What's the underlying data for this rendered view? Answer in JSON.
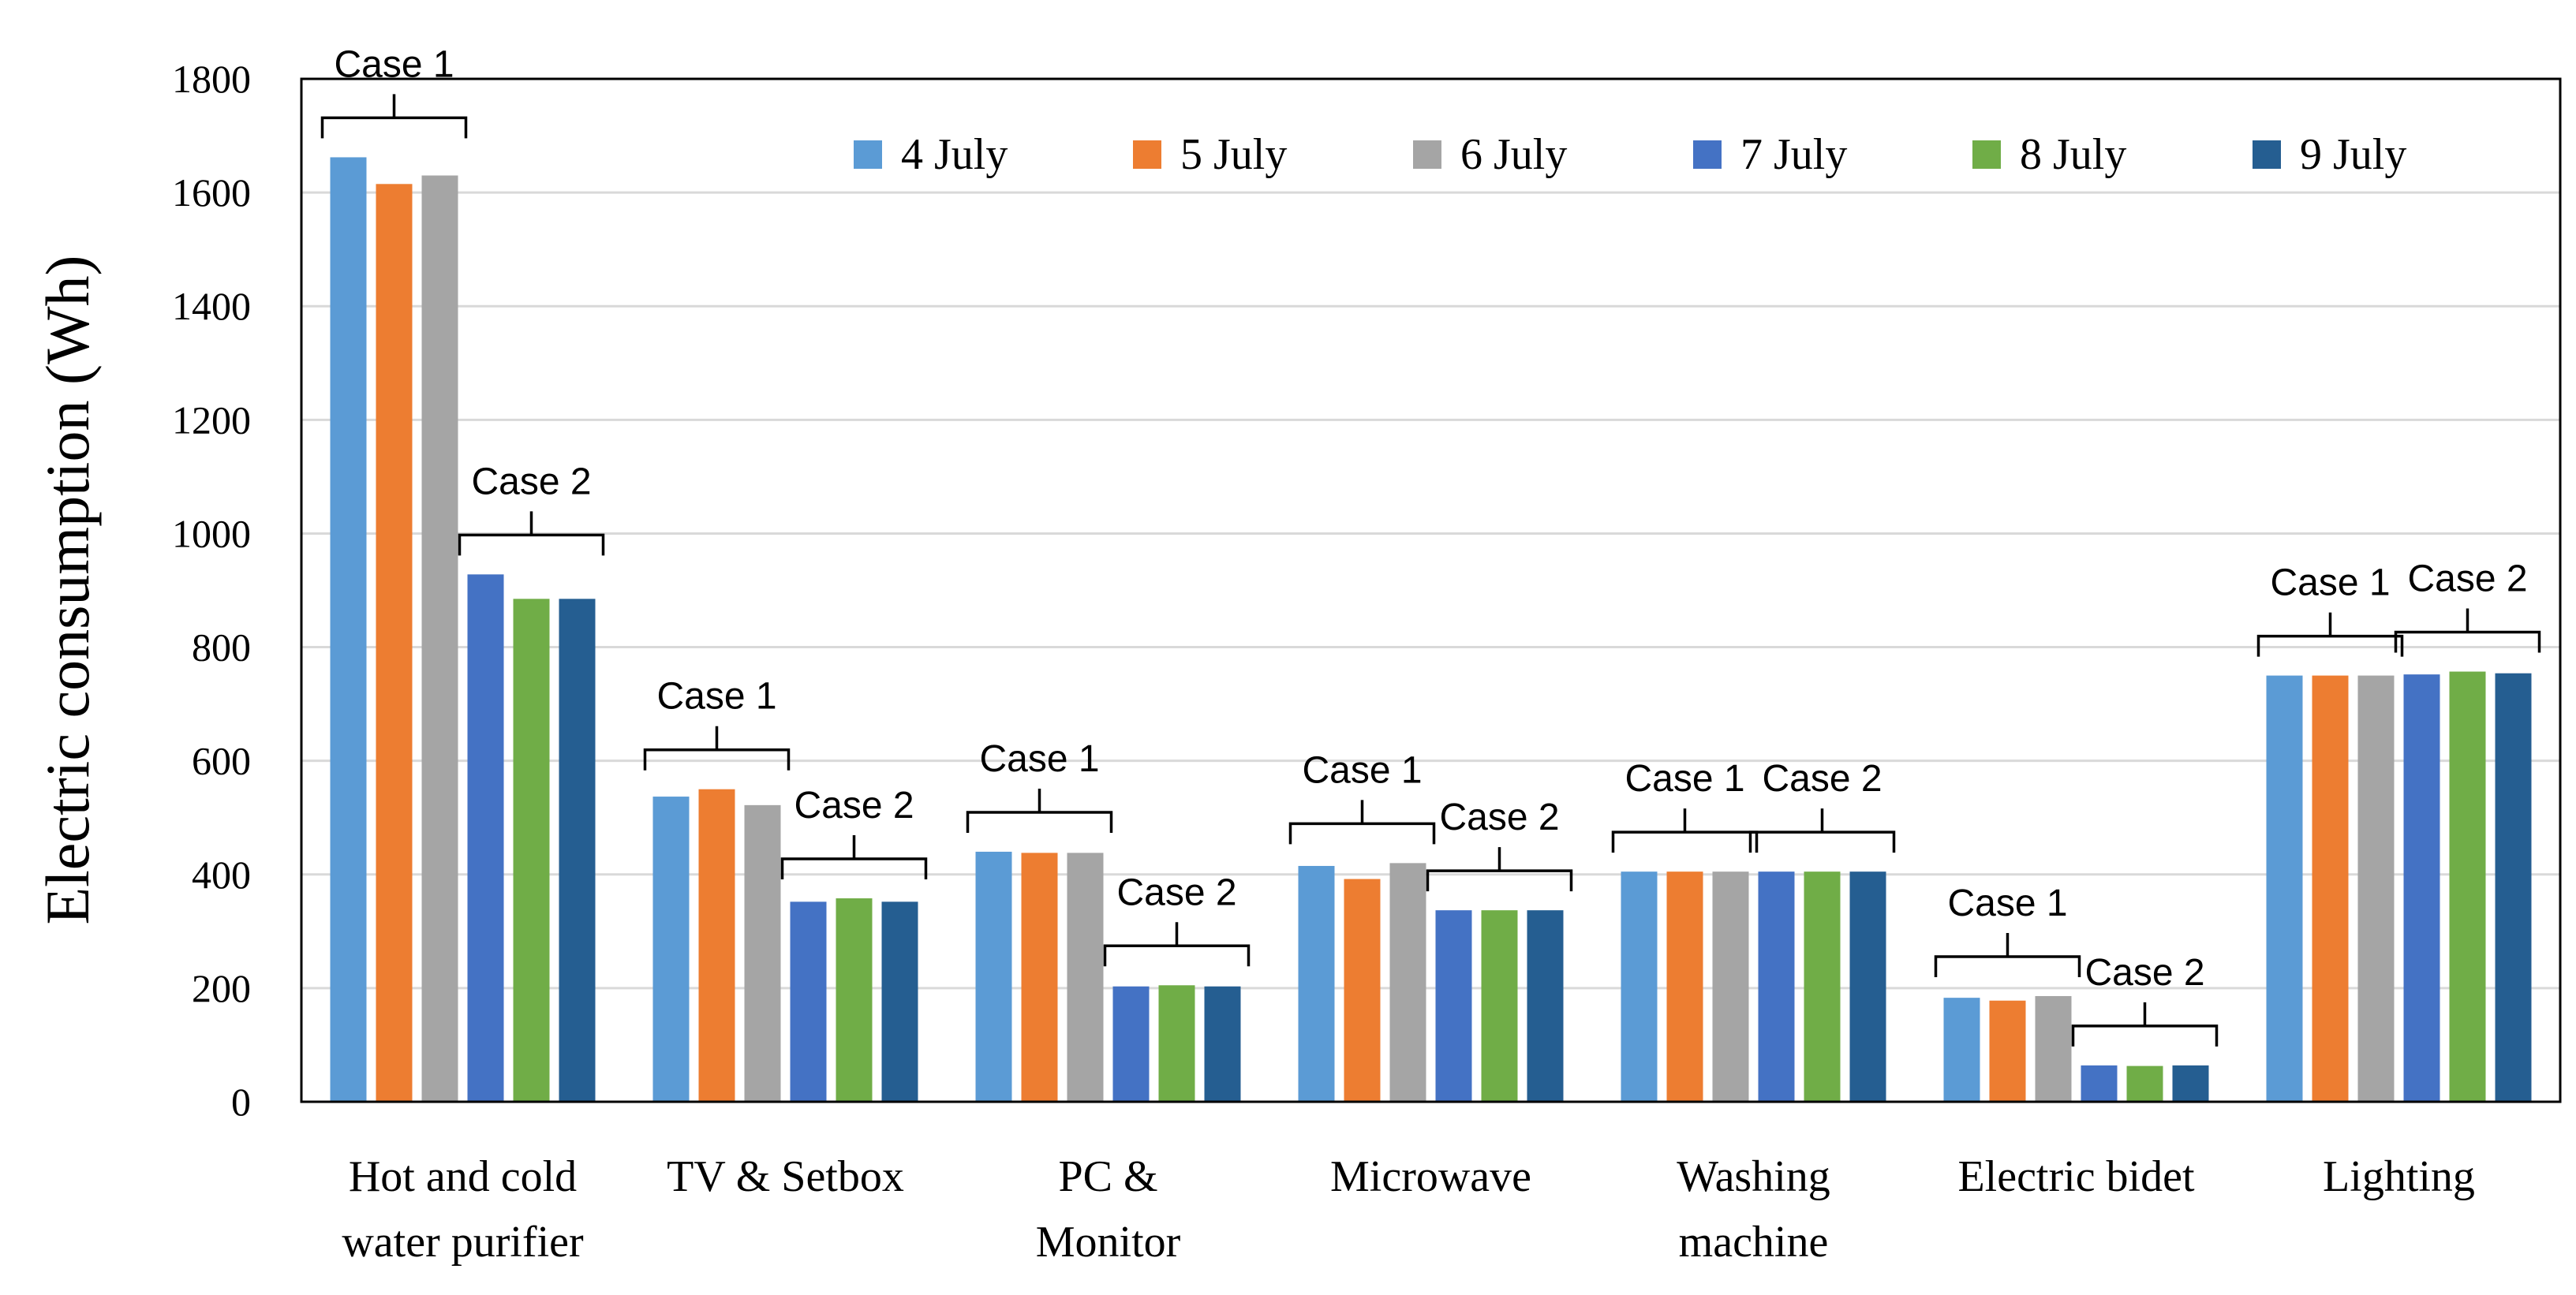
{
  "chart_data": {
    "type": "bar",
    "title": "",
    "xlabel": "",
    "ylabel": "Electric consumption (Wh)",
    "ylim": [
      0,
      1800
    ],
    "yticks": [
      0,
      200,
      400,
      600,
      800,
      1000,
      1200,
      1400,
      1600,
      1800
    ],
    "grid": true,
    "legend_position": "top",
    "categories": [
      [
        "Hot and cold",
        "water purifier"
      ],
      [
        "TV & Setbox"
      ],
      [
        "PC &",
        "Monitor"
      ],
      [
        "Microwave"
      ],
      [
        "Washing",
        "machine"
      ],
      [
        "Electric bidet"
      ],
      [
        "Lighting"
      ]
    ],
    "series": [
      {
        "name": "4 July",
        "color": "#5b9bd5",
        "values": [
          1662,
          537,
          440,
          415,
          405,
          183,
          750
        ]
      },
      {
        "name": "5 July",
        "color": "#ed7d31",
        "values": [
          1615,
          550,
          438,
          392,
          405,
          178,
          750
        ]
      },
      {
        "name": "6 July",
        "color": "#a5a5a5",
        "values": [
          1630,
          522,
          438,
          420,
          405,
          186,
          750
        ]
      },
      {
        "name": "7 July",
        "color": "#4472c4",
        "values": [
          928,
          352,
          203,
          337,
          405,
          64,
          752
        ]
      },
      {
        "name": "8 July",
        "color": "#70ad47",
        "values": [
          885,
          358,
          205,
          337,
          405,
          63,
          757
        ]
      },
      {
        "name": "9 July",
        "color": "#255e91",
        "values": [
          885,
          352,
          203,
          337,
          405,
          64,
          754
        ]
      }
    ],
    "annotations": [
      {
        "category": 0,
        "group": 1,
        "label": "Case 1"
      },
      {
        "category": 0,
        "group": 2,
        "label": "Case 2"
      },
      {
        "category": 1,
        "group": 1,
        "label": "Case 1"
      },
      {
        "category": 1,
        "group": 2,
        "label": "Case 2"
      },
      {
        "category": 2,
        "group": 1,
        "label": "Case 1"
      },
      {
        "category": 2,
        "group": 2,
        "label": "Case 2"
      },
      {
        "category": 3,
        "group": 1,
        "label": "Case 1"
      },
      {
        "category": 3,
        "group": 2,
        "label": "Case 2"
      },
      {
        "category": 4,
        "group": 1,
        "label": "Case 1"
      },
      {
        "category": 4,
        "group": 2,
        "label": "Case 2"
      },
      {
        "category": 5,
        "group": 1,
        "label": "Case 1"
      },
      {
        "category": 5,
        "group": 2,
        "label": "Case 2"
      },
      {
        "category": 6,
        "group": 1,
        "label": "Case 1"
      },
      {
        "category": 6,
        "group": 2,
        "label": "Case 2"
      }
    ]
  }
}
